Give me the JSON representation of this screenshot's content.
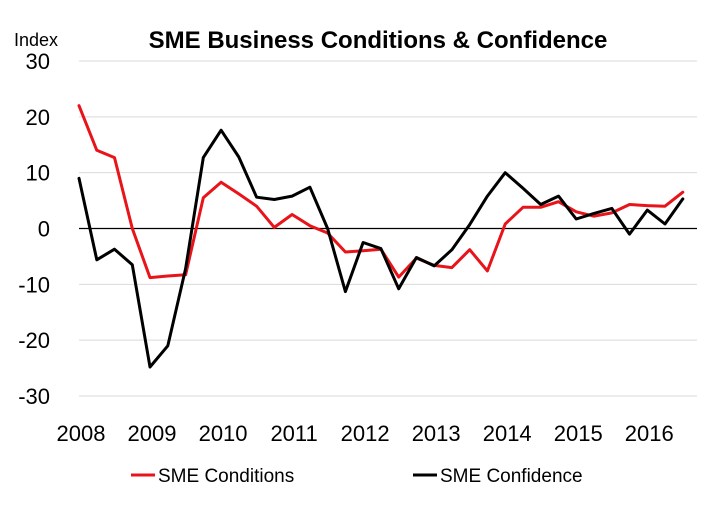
{
  "chart_data": {
    "type": "line",
    "title": "SME Business Conditions & Confidence",
    "unit_label": "Index",
    "xlabel": "",
    "ylabel": "",
    "ylim": [
      -30,
      30
    ],
    "yticks": [
      "30",
      "20",
      "10",
      "0",
      "-10",
      "-20",
      "-30"
    ],
    "ytick_values": [
      30,
      20,
      10,
      0,
      -10,
      -20,
      -30
    ],
    "xlim": [
      2008,
      2016.7
    ],
    "xticks": [
      "2008",
      "2009",
      "2010",
      "2011",
      "2012",
      "2013",
      "2014",
      "2015",
      "2016"
    ],
    "xtick_values": [
      2008,
      2009,
      2010,
      2011,
      2012,
      2013,
      2014,
      2015,
      2016
    ],
    "grid": "horizontal",
    "legend_position": "bottom",
    "series": [
      {
        "name": "SME Conditions",
        "color": "#e8141a",
        "x": [
          2008.0,
          2008.25,
          2008.5,
          2008.75,
          2009.0,
          2009.25,
          2009.5,
          2009.75,
          2010.0,
          2010.25,
          2010.5,
          2010.75,
          2011.0,
          2011.25,
          2011.5,
          2011.75,
          2012.0,
          2012.25,
          2012.5,
          2012.75,
          2013.0,
          2013.25,
          2013.5,
          2013.75,
          2014.0,
          2014.25,
          2014.5,
          2014.75,
          2015.0,
          2015.25,
          2015.5,
          2015.75,
          2016.0,
          2016.25,
          2016.5
        ],
        "values": [
          22,
          14,
          12.7,
          0,
          -8.8,
          -8.5,
          -8.3,
          5.5,
          8.3,
          6.2,
          4,
          0.2,
          2.5,
          0.5,
          -0.8,
          -4.2,
          -4,
          -3.7,
          -8.7,
          -5.3,
          -6.6,
          -7,
          -3.8,
          -7.6,
          0.8,
          3.8,
          3.8,
          4.8,
          3,
          2.2,
          2.8,
          4.3,
          4.1,
          4,
          6.5
        ]
      },
      {
        "name": "SME Confidence",
        "color": "#000000",
        "x": [
          2008.0,
          2008.25,
          2008.5,
          2008.75,
          2009.0,
          2009.25,
          2009.5,
          2009.75,
          2010.0,
          2010.25,
          2010.5,
          2010.75,
          2011.0,
          2011.25,
          2011.5,
          2011.75,
          2012.0,
          2012.25,
          2012.5,
          2012.75,
          2013.0,
          2013.25,
          2013.5,
          2013.75,
          2014.0,
          2014.25,
          2014.5,
          2014.75,
          2015.0,
          2015.25,
          2015.5,
          2015.75,
          2016.0,
          2016.25,
          2016.5
        ],
        "values": [
          9,
          -5.6,
          -3.7,
          -6.5,
          -24.8,
          -21,
          -7.2,
          12.7,
          17.6,
          12.8,
          5.6,
          5.2,
          5.8,
          7.4,
          0,
          -11.3,
          -2.5,
          -3.6,
          -10.8,
          -5.2,
          -6.7,
          -3.8,
          0.7,
          5.8,
          10,
          7.2,
          4.3,
          5.8,
          1.7,
          2.7,
          3.6,
          -1,
          3.3,
          0.8,
          5.3
        ]
      }
    ]
  }
}
